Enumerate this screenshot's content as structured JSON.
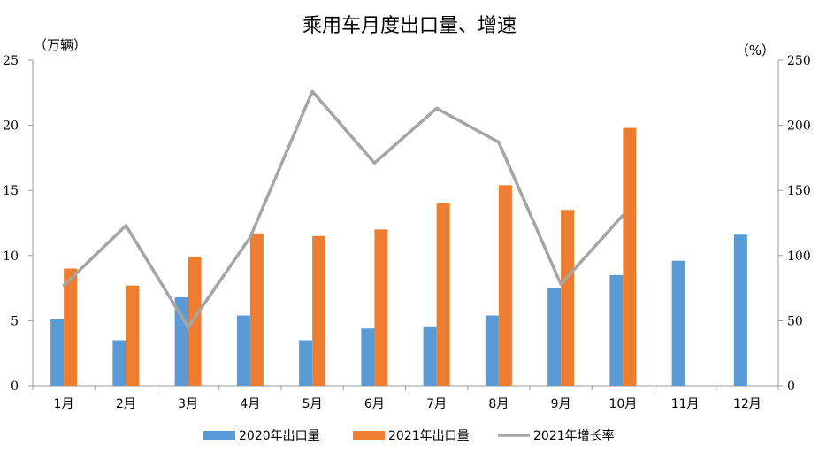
{
  "chart_data": {
    "type": "bar",
    "title": "乘用车月度出口量、增速",
    "left_unit": "（万辆）",
    "right_unit": "（%）",
    "categories": [
      "1月",
      "2月",
      "3月",
      "4月",
      "5月",
      "6月",
      "7月",
      "8月",
      "9月",
      "10月",
      "11月",
      "12月"
    ],
    "y_left": {
      "min": 0,
      "max": 25,
      "ticks": [
        0,
        5,
        10,
        15,
        20,
        25
      ]
    },
    "y_right": {
      "min": 0,
      "max": 250,
      "ticks": [
        0,
        50,
        100,
        150,
        200,
        250
      ]
    },
    "series": [
      {
        "name": "2020年出口量",
        "type": "bar",
        "axis": "left",
        "color": "#5B9BD5",
        "values": [
          5.1,
          3.5,
          6.8,
          5.4,
          3.5,
          4.4,
          4.5,
          5.4,
          7.5,
          8.5,
          9.6,
          11.6
        ]
      },
      {
        "name": "2021年出口量",
        "type": "bar",
        "axis": "left",
        "color": "#ED7D31",
        "values": [
          9.0,
          7.7,
          9.9,
          11.7,
          11.5,
          12.0,
          14.0,
          15.4,
          13.5,
          19.8,
          null,
          null
        ]
      },
      {
        "name": "2021年增长率",
        "type": "line",
        "axis": "right",
        "color": "#A5A5A5",
        "values": [
          77,
          123,
          45,
          114,
          226,
          171,
          213,
          187,
          78,
          131,
          null,
          null
        ]
      }
    ],
    "legend_position": "bottom",
    "grid": false
  }
}
